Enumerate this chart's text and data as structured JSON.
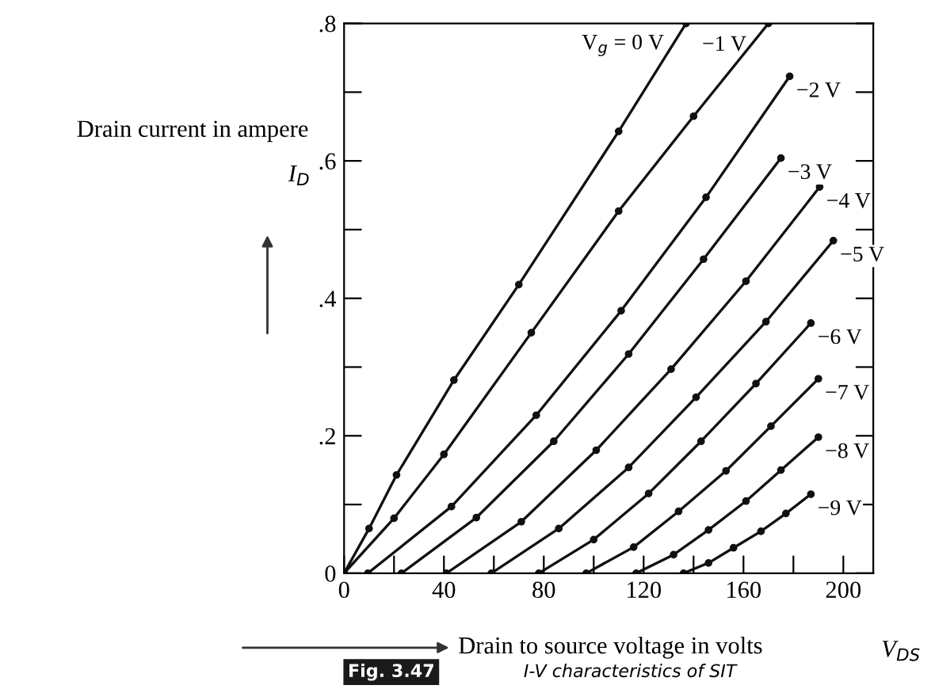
{
  "chart_data": {
    "type": "line",
    "xlabel": "Drain to source voltage in volts",
    "ylabel": "Drain current in ampere",
    "annotations": [
      "I$_{D}$",
      "V$_{DS}$",
      "Fig. 3.47",
      "I-V characteristics of SIT"
    ],
    "xlim": [
      0,
      212
    ],
    "ylim": [
      0,
      0.8
    ],
    "xticks": [
      0,
      {
        "value": 20,
        "label": null
      },
      40,
      {
        "value": 60,
        "label": null
      },
      80,
      {
        "value": 100,
        "label": null
      },
      120,
      {
        "value": 140,
        "label": null
      },
      160,
      {
        "value": 180,
        "label": null
      },
      200
    ],
    "yticks": [
      {
        "value": 0,
        "label": "0"
      },
      {
        "value": 0.1,
        "label": null
      },
      {
        "value": 0.2,
        "label": ".2"
      },
      {
        "value": 0.3,
        "label": null
      },
      {
        "value": 0.4,
        "label": ".4"
      },
      {
        "value": 0.5,
        "label": null
      },
      {
        "value": 0.6,
        "label": ".6"
      },
      {
        "value": 0.7,
        "label": null
      },
      {
        "value": 0.8,
        "label": ".8"
      }
    ],
    "grid": false,
    "legend": false,
    "marker": "circle",
    "line_style": "solid",
    "series": [
      {
        "name": "V$_{g}$ = 0 V",
        "color": "#111111",
        "x": [
          0,
          10,
          21,
          44,
          70,
          110,
          137
        ],
        "values": [
          0,
          0.065,
          0.143,
          0.281,
          0.42,
          0.643,
          0.8
        ]
      },
      {
        "name": "−1 V",
        "color": "#111111",
        "x": [
          0,
          20,
          40,
          75,
          110,
          140,
          170
        ],
        "values": [
          0,
          0.08,
          0.173,
          0.35,
          0.527,
          0.665,
          0.8
        ]
      },
      {
        "name": "−2 V",
        "color": "#111111",
        "x": [
          9.5,
          43,
          77,
          111,
          145,
          178.5
        ],
        "values": [
          0,
          0.097,
          0.23,
          0.382,
          0.547,
          0.723
        ]
      },
      {
        "name": "−3 V",
        "color": "#111111",
        "x": [
          23,
          53,
          84,
          114,
          144,
          175
        ],
        "values": [
          0,
          0.081,
          0.192,
          0.319,
          0.457,
          0.604
        ]
      },
      {
        "name": "−4 V",
        "color": "#111111",
        "x": [
          41,
          71,
          101,
          131,
          161,
          190.5
        ],
        "values": [
          0,
          0.075,
          0.179,
          0.297,
          0.425,
          0.562
        ]
      },
      {
        "name": "−5 V",
        "color": "#111111",
        "x": [
          59,
          86,
          114,
          141,
          169,
          196
        ],
        "values": [
          0,
          0.065,
          0.154,
          0.256,
          0.366,
          0.484
        ]
      },
      {
        "name": "−6 V",
        "color": "#111111",
        "x": [
          78,
          100,
          122,
          143,
          165,
          187
        ],
        "values": [
          0,
          0.049,
          0.116,
          0.192,
          0.276,
          0.364
        ]
      },
      {
        "name": "−7 V",
        "color": "#111111",
        "x": [
          97,
          116,
          134,
          153,
          171,
          190
        ],
        "values": [
          0,
          0.038,
          0.09,
          0.149,
          0.214,
          0.283
        ]
      },
      {
        "name": "−8 V",
        "color": "#111111",
        "x": [
          117,
          132,
          146,
          161,
          175,
          190
        ],
        "values": [
          0,
          0.027,
          0.063,
          0.105,
          0.15,
          0.198
        ]
      },
      {
        "name": "−9 V",
        "color": "#111111",
        "x": [
          136,
          146,
          156,
          167,
          177,
          187
        ],
        "values": [
          0,
          0.015,
          0.037,
          0.061,
          0.087,
          0.115
        ]
      }
    ]
  }
}
